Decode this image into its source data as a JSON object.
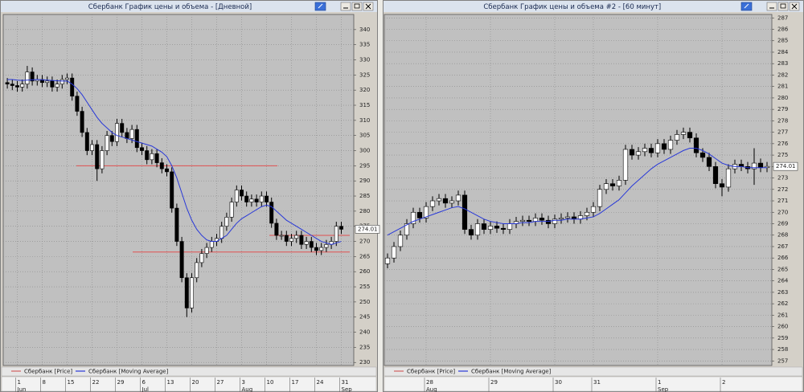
{
  "chart_data": [
    {
      "type": "candlestick",
      "title": "Сбербанк График цены и объема - [Дневной]",
      "categories": [
        null,
        null,
        "1",
        null,
        null,
        null,
        null,
        "8",
        null,
        null,
        null,
        null,
        "15",
        null,
        null,
        null,
        null,
        "22",
        null,
        null,
        null,
        null,
        "29",
        null,
        null,
        null,
        null,
        "6",
        null,
        null,
        null,
        null,
        "13",
        null,
        null,
        null,
        null,
        "20",
        null,
        null,
        null,
        null,
        "27",
        null,
        null,
        null,
        null,
        "3",
        null,
        null,
        null,
        null,
        "10",
        null,
        null,
        null,
        null,
        "17",
        null,
        null,
        null,
        null,
        "24",
        null,
        null,
        null,
        null,
        "31"
      ],
      "months": [
        null,
        null,
        "Jun",
        null,
        null,
        null,
        null,
        null,
        null,
        null,
        null,
        null,
        null,
        null,
        null,
        null,
        null,
        null,
        null,
        null,
        null,
        null,
        null,
        null,
        null,
        null,
        null,
        "Jul",
        null,
        null,
        null,
        null,
        null,
        null,
        null,
        null,
        null,
        null,
        null,
        null,
        null,
        null,
        null,
        null,
        null,
        null,
        null,
        "Aug",
        null,
        null,
        null,
        null,
        null,
        null,
        null,
        null,
        null,
        null,
        null,
        null,
        null,
        null,
        null,
        null,
        null,
        null,
        null,
        "Sep"
      ],
      "series": [
        {
          "name": "Сбербанк [Price]",
          "color": "#d06060",
          "open": [
            322.5,
            322,
            321.5,
            321,
            322,
            326,
            323,
            323.5,
            322.5,
            323,
            321,
            322,
            323.5,
            324,
            318,
            313,
            306,
            300,
            302,
            294,
            300,
            305,
            303,
            309,
            306,
            304,
            307,
            301,
            300,
            297,
            299,
            296,
            294,
            293,
            281,
            270,
            258,
            248,
            258,
            263,
            266,
            268,
            270,
            271,
            275,
            278,
            283,
            287,
            285,
            283,
            284,
            283,
            285,
            283,
            276,
            272,
            272,
            270,
            271,
            272,
            269,
            270,
            268,
            267,
            268,
            269,
            270,
            275
          ],
          "high": [
            324,
            323.5,
            323,
            323.5,
            328,
            327.5,
            325,
            325,
            324.5,
            324.5,
            323.5,
            325,
            325.5,
            325.5,
            319.5,
            314.5,
            307.5,
            303.5,
            303.5,
            301.5,
            306.5,
            306.5,
            310.5,
            310.5,
            307.5,
            308.5,
            308.5,
            302.5,
            301.5,
            300.5,
            300.5,
            297.5,
            295.5,
            294.5,
            282.5,
            271.5,
            259.5,
            259.5,
            264.5,
            267.5,
            269.5,
            271.5,
            272.5,
            276.5,
            279.5,
            284.5,
            288.5,
            288.5,
            286.5,
            285.5,
            285.5,
            286.5,
            286.5,
            284.5,
            277.5,
            273.5,
            273.5,
            272.5,
            273.5,
            273.5,
            271.5,
            271.5,
            269.5,
            269.5,
            270.5,
            271.5,
            276.5,
            276.5
          ],
          "low": [
            320.5,
            320,
            319.5,
            319.5,
            320.5,
            321.5,
            321.5,
            321,
            321,
            319.5,
            319.5,
            320.5,
            322,
            316.5,
            311.5,
            304.5,
            298.5,
            298.5,
            290,
            292.5,
            298.5,
            301.5,
            301.5,
            304.5,
            302.5,
            302.5,
            299.5,
            298.5,
            295.5,
            295.5,
            294.5,
            292.5,
            291.5,
            279.5,
            268.5,
            256.5,
            245,
            246.5,
            256.5,
            261.5,
            264.5,
            266.5,
            268.5,
            269.5,
            273.5,
            276.5,
            281.5,
            283.5,
            281.5,
            281.5,
            281.5,
            281.5,
            281.5,
            274.5,
            270.5,
            270.5,
            268.5,
            268.5,
            269.5,
            267.5,
            267.5,
            266.5,
            265.5,
            265.5,
            266.5,
            267.5,
            268.5,
            272.5
          ],
          "close": [
            322,
            321.5,
            321,
            322,
            326,
            323,
            323.5,
            322.5,
            323,
            321,
            322,
            323.5,
            324,
            318,
            313,
            306,
            300,
            302,
            294,
            300,
            305,
            303,
            309,
            306,
            304,
            307,
            301,
            300,
            297,
            299,
            296,
            294,
            293,
            281,
            270,
            258,
            248,
            258,
            263,
            266,
            268,
            270,
            271,
            275,
            278,
            283,
            287,
            285,
            283,
            284,
            283,
            285,
            283,
            276,
            272,
            272,
            270,
            271,
            272,
            269,
            270,
            268,
            267,
            268,
            269,
            270,
            275,
            274.01
          ]
        },
        {
          "name": "Сбербанк [Moving Average]",
          "color": "#2838d8",
          "values": [
            323.5,
            323.5,
            323.3,
            323.2,
            323.3,
            323.4,
            323.5,
            323.4,
            323.3,
            323.2,
            323.1,
            323,
            323,
            322,
            320.5,
            318.5,
            316,
            313.5,
            311,
            309,
            307.5,
            306,
            305,
            304.5,
            304,
            303.5,
            303,
            302.5,
            302,
            301.5,
            300.5,
            299.5,
            298,
            295,
            291,
            286,
            281,
            277,
            274,
            272,
            270.5,
            270,
            270,
            271,
            272,
            274,
            276,
            277.5,
            278.5,
            279.5,
            280.5,
            281.5,
            282,
            281.5,
            280,
            278.5,
            277,
            276,
            275,
            274,
            273,
            272,
            271,
            270,
            269.5,
            269,
            269.5,
            270
          ]
        }
      ],
      "levels": [
        295,
        266.5,
        272
      ],
      "level_color": "#e05050",
      "last_value": 274.01,
      "ylim": [
        229,
        345
      ],
      "yticks": [
        230,
        235,
        240,
        245,
        250,
        255,
        260,
        265,
        270,
        275,
        280,
        285,
        290,
        295,
        300,
        305,
        310,
        315,
        320,
        325,
        330,
        335,
        340
      ],
      "grid": true
    },
    {
      "type": "candlestick",
      "title": "Сбербанк График цены и объема #2 - [60 минут]",
      "categories": [
        null,
        null,
        null,
        null,
        null,
        null,
        "28",
        null,
        null,
        null,
        null,
        null,
        null,
        null,
        null,
        null,
        "29",
        null,
        null,
        null,
        null,
        null,
        null,
        null,
        null,
        null,
        "30",
        null,
        null,
        null,
        null,
        null,
        "31",
        null,
        null,
        null,
        null,
        null,
        null,
        null,
        null,
        null,
        "1",
        null,
        null,
        null,
        null,
        null,
        null,
        null,
        null,
        null,
        "2",
        null,
        null,
        null,
        null,
        null,
        null,
        null
      ],
      "months": [
        null,
        null,
        null,
        null,
        null,
        null,
        "Aug",
        null,
        null,
        null,
        null,
        null,
        null,
        null,
        null,
        null,
        null,
        null,
        null,
        null,
        null,
        null,
        null,
        null,
        null,
        null,
        null,
        null,
        null,
        null,
        null,
        null,
        null,
        null,
        null,
        null,
        null,
        null,
        null,
        null,
        null,
        null,
        "Sep",
        null,
        null,
        null,
        null,
        null,
        null,
        null,
        null,
        null,
        null,
        null,
        null,
        null,
        null,
        null,
        null,
        null
      ],
      "series": [
        {
          "name": "Сбербанк [Price]",
          "color": "#d06060",
          "open": [
            265.5,
            266,
            267,
            268,
            269,
            270,
            269.5,
            270.5,
            271,
            271.2,
            270.8,
            271,
            271.5,
            268.5,
            268,
            269,
            268.5,
            268.8,
            268.6,
            268.5,
            269,
            269.2,
            269.3,
            269.2,
            269.5,
            269.3,
            269,
            269.4,
            269.5,
            269.6,
            269.4,
            269.7,
            270,
            270.5,
            272,
            272.5,
            272.3,
            272.8,
            275.5,
            275,
            275.3,
            275.6,
            275.2,
            276,
            275.5,
            276.3,
            276.8,
            277,
            276.5,
            275.2,
            274.8,
            274,
            272.5,
            272.2,
            273.8,
            274.2,
            274,
            273.8,
            274.3,
            273.9
          ],
          "high": [
            266.4,
            267.4,
            268.4,
            269.4,
            270.4,
            270.4,
            270.9,
            271.4,
            271.6,
            271.6,
            271.4,
            271.9,
            271.9,
            268.9,
            269.4,
            269.4,
            269.2,
            269.2,
            269,
            269.4,
            269.6,
            269.7,
            269.7,
            269.9,
            269.9,
            269.7,
            269.8,
            269.9,
            270,
            270,
            270.1,
            270.4,
            270.9,
            272.4,
            272.9,
            272.9,
            273.2,
            275.9,
            275.9,
            275.7,
            276,
            276,
            276.4,
            276.4,
            276.7,
            277.2,
            277.4,
            277.4,
            276.9,
            275.6,
            275.2,
            274.4,
            272.9,
            274.2,
            274.6,
            274.6,
            274.4,
            275.6,
            274.7,
            274.4
          ],
          "low": [
            265.1,
            265.6,
            266.6,
            267.6,
            268.6,
            269.1,
            269.1,
            270.1,
            270.6,
            270.4,
            270.4,
            270.6,
            268.1,
            267.6,
            267.6,
            268.1,
            268.1,
            268.2,
            268.1,
            268.1,
            268.6,
            268.8,
            268.8,
            268.8,
            268.9,
            268.6,
            268.6,
            269,
            269.1,
            269,
            269,
            269.3,
            269.6,
            270.1,
            271.6,
            271.9,
            271.9,
            272.4,
            274.6,
            274.6,
            274.9,
            274.8,
            274.8,
            275.1,
            275.1,
            275.9,
            276.4,
            276.1,
            274.8,
            274.4,
            273.6,
            272.1,
            271.4,
            271.8,
            273.4,
            273.6,
            273.4,
            272.4,
            273.5,
            273.5
          ],
          "close": [
            266,
            267,
            268,
            269,
            270,
            269.5,
            270.5,
            271,
            271.2,
            270.8,
            271,
            271.5,
            268.5,
            268,
            269,
            268.5,
            268.8,
            268.6,
            268.5,
            269,
            269.2,
            269.3,
            269.2,
            269.5,
            269.3,
            269,
            269.4,
            269.5,
            269.6,
            269.4,
            269.7,
            270,
            270.5,
            272,
            272.5,
            272.3,
            272.8,
            275.5,
            275,
            275.3,
            275.6,
            275.2,
            276,
            275.5,
            276.3,
            276.8,
            277,
            276.5,
            275.2,
            274.8,
            274,
            272.5,
            272.2,
            273.8,
            274.2,
            274,
            273.8,
            274.3,
            273.9,
            274.01
          ]
        },
        {
          "name": "Сбербанк [Moving Average]",
          "color": "#2838d8",
          "values": [
            268,
            268.3,
            268.6,
            268.9,
            269.2,
            269.4,
            269.6,
            269.8,
            270,
            270.2,
            270.4,
            270.5,
            270.3,
            270,
            269.7,
            269.4,
            269.2,
            269.1,
            269,
            269,
            269,
            269.1,
            269.1,
            269.2,
            269.2,
            269.2,
            269.3,
            269.3,
            269.4,
            269.4,
            269.4,
            269.5,
            269.6,
            269.9,
            270.3,
            270.7,
            271.1,
            271.7,
            272.3,
            272.8,
            273.3,
            273.8,
            274.2,
            274.5,
            274.8,
            275.1,
            275.4,
            275.6,
            275.6,
            275.4,
            275.1,
            274.7,
            274.3,
            274.1,
            274,
            274,
            273.9,
            273.9,
            273.9,
            273.9
          ]
        }
      ],
      "last_value": 274.01,
      "ylim": [
        256.6,
        287.3
      ],
      "yticks": [
        257,
        258,
        259,
        260,
        261,
        262,
        263,
        264,
        265,
        266,
        267,
        268,
        269,
        270,
        271,
        272,
        273,
        274,
        275,
        276,
        277,
        278,
        279,
        280,
        281,
        282,
        283,
        284,
        285,
        286,
        287
      ],
      "grid": true
    }
  ]
}
